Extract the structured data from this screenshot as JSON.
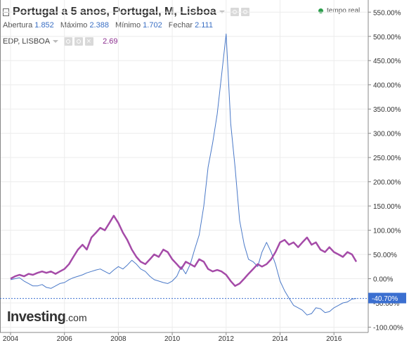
{
  "header": {
    "title": "Portugal a 5 anos, Portugal, M, Lisboa",
    "realtime": "tempo real",
    "ohlc": [
      {
        "label": "Abertura",
        "value": "1.852"
      },
      {
        "label": "Máximo",
        "value": "2.388"
      },
      {
        "label": "Mínimo",
        "value": "1.702"
      },
      {
        "label": "Fechar",
        "value": "2.111"
      }
    ],
    "comparison": {
      "name": "EDP, LISBOA",
      "value": "2.69"
    }
  },
  "logo": {
    "main": "Investing",
    "domain": ".com"
  },
  "colors": {
    "primary": "#4a79c8",
    "comparison": "#a54ba8",
    "current_tag": "#3b6fd0",
    "realtime_dot": "#2a9d4a"
  },
  "chart_data": {
    "type": "line",
    "x_ticks": [
      "2004",
      "2006",
      "2008",
      "2010",
      "2012",
      "2014",
      "2016"
    ],
    "y_ticks": [
      "550.00%",
      "500.00%",
      "450.00%",
      "400.00%",
      "350.00%",
      "300.00%",
      "250.00%",
      "200.00%",
      "150.00%",
      "100.00%",
      "50.00%",
      "0.00%",
      "-50.00%",
      "-100.00%"
    ],
    "y_tick_values": [
      550,
      500,
      450,
      400,
      350,
      300,
      250,
      200,
      150,
      100,
      50,
      0,
      -50,
      -100
    ],
    "xlim": [
      2003.8,
      2017.2
    ],
    "ylim": [
      -105,
      570
    ],
    "current_value_label": "-40.70%",
    "current_value": -40.7,
    "grid": true,
    "series": [
      {
        "name": "Portugal a 5 anos",
        "points": [
          [
            2004.0,
            -2
          ],
          [
            2004.17,
            0
          ],
          [
            2004.33,
            2
          ],
          [
            2004.5,
            -5
          ],
          [
            2004.67,
            -10
          ],
          [
            2004.83,
            -15
          ],
          [
            2005.0,
            -15
          ],
          [
            2005.17,
            -12
          ],
          [
            2005.33,
            -18
          ],
          [
            2005.5,
            -20
          ],
          [
            2005.67,
            -15
          ],
          [
            2005.83,
            -10
          ],
          [
            2006.0,
            -8
          ],
          [
            2006.17,
            -2
          ],
          [
            2006.33,
            2
          ],
          [
            2006.5,
            5
          ],
          [
            2006.67,
            8
          ],
          [
            2006.83,
            12
          ],
          [
            2007.0,
            15
          ],
          [
            2007.17,
            18
          ],
          [
            2007.33,
            20
          ],
          [
            2007.5,
            15
          ],
          [
            2007.67,
            10
          ],
          [
            2007.83,
            18
          ],
          [
            2008.0,
            25
          ],
          [
            2008.17,
            20
          ],
          [
            2008.33,
            28
          ],
          [
            2008.5,
            38
          ],
          [
            2008.67,
            30
          ],
          [
            2008.83,
            20
          ],
          [
            2009.0,
            15
          ],
          [
            2009.17,
            5
          ],
          [
            2009.33,
            -2
          ],
          [
            2009.5,
            -5
          ],
          [
            2009.67,
            -8
          ],
          [
            2009.83,
            -10
          ],
          [
            2010.0,
            -5
          ],
          [
            2010.17,
            5
          ],
          [
            2010.33,
            25
          ],
          [
            2010.5,
            10
          ],
          [
            2010.67,
            30
          ],
          [
            2010.83,
            60
          ],
          [
            2011.0,
            90
          ],
          [
            2011.17,
            150
          ],
          [
            2011.33,
            230
          ],
          [
            2011.5,
            280
          ],
          [
            2011.67,
            340
          ],
          [
            2011.83,
            420
          ],
          [
            2012.0,
            505
          ],
          [
            2012.17,
            320
          ],
          [
            2012.33,
            230
          ],
          [
            2012.5,
            120
          ],
          [
            2012.67,
            70
          ],
          [
            2012.83,
            40
          ],
          [
            2013.0,
            35
          ],
          [
            2013.17,
            25
          ],
          [
            2013.33,
            55
          ],
          [
            2013.5,
            75
          ],
          [
            2013.67,
            55
          ],
          [
            2013.83,
            30
          ],
          [
            2014.0,
            -5
          ],
          [
            2014.17,
            -25
          ],
          [
            2014.33,
            -40
          ],
          [
            2014.5,
            -55
          ],
          [
            2014.67,
            -60
          ],
          [
            2014.83,
            -65
          ],
          [
            2015.0,
            -75
          ],
          [
            2015.17,
            -72
          ],
          [
            2015.33,
            -60
          ],
          [
            2015.5,
            -62
          ],
          [
            2015.67,
            -70
          ],
          [
            2015.83,
            -68
          ],
          [
            2016.0,
            -60
          ],
          [
            2016.17,
            -55
          ],
          [
            2016.33,
            -50
          ],
          [
            2016.5,
            -48
          ],
          [
            2016.67,
            -42
          ],
          [
            2016.83,
            -40.7
          ]
        ]
      },
      {
        "name": "EDP, LISBOA",
        "points": [
          [
            2004.0,
            0
          ],
          [
            2004.17,
            5
          ],
          [
            2004.33,
            8
          ],
          [
            2004.5,
            5
          ],
          [
            2004.67,
            10
          ],
          [
            2004.83,
            8
          ],
          [
            2005.0,
            12
          ],
          [
            2005.17,
            15
          ],
          [
            2005.33,
            12
          ],
          [
            2005.5,
            15
          ],
          [
            2005.67,
            10
          ],
          [
            2005.83,
            15
          ],
          [
            2006.0,
            20
          ],
          [
            2006.17,
            30
          ],
          [
            2006.33,
            45
          ],
          [
            2006.5,
            60
          ],
          [
            2006.67,
            70
          ],
          [
            2006.83,
            60
          ],
          [
            2007.0,
            85
          ],
          [
            2007.17,
            95
          ],
          [
            2007.33,
            105
          ],
          [
            2007.5,
            100
          ],
          [
            2007.67,
            115
          ],
          [
            2007.83,
            130
          ],
          [
            2008.0,
            115
          ],
          [
            2008.17,
            95
          ],
          [
            2008.33,
            80
          ],
          [
            2008.5,
            60
          ],
          [
            2008.67,
            45
          ],
          [
            2008.83,
            35
          ],
          [
            2009.0,
            30
          ],
          [
            2009.17,
            40
          ],
          [
            2009.33,
            50
          ],
          [
            2009.5,
            45
          ],
          [
            2009.67,
            60
          ],
          [
            2009.83,
            55
          ],
          [
            2010.0,
            40
          ],
          [
            2010.17,
            30
          ],
          [
            2010.33,
            20
          ],
          [
            2010.5,
            35
          ],
          [
            2010.67,
            30
          ],
          [
            2010.83,
            25
          ],
          [
            2011.0,
            40
          ],
          [
            2011.17,
            35
          ],
          [
            2011.33,
            20
          ],
          [
            2011.5,
            15
          ],
          [
            2011.67,
            18
          ],
          [
            2011.83,
            15
          ],
          [
            2012.0,
            8
          ],
          [
            2012.17,
            -5
          ],
          [
            2012.33,
            -15
          ],
          [
            2012.5,
            -10
          ],
          [
            2012.67,
            0
          ],
          [
            2012.83,
            10
          ],
          [
            2013.0,
            20
          ],
          [
            2013.17,
            30
          ],
          [
            2013.33,
            25
          ],
          [
            2013.5,
            30
          ],
          [
            2013.67,
            40
          ],
          [
            2013.83,
            55
          ],
          [
            2014.0,
            75
          ],
          [
            2014.17,
            80
          ],
          [
            2014.33,
            70
          ],
          [
            2014.5,
            75
          ],
          [
            2014.67,
            65
          ],
          [
            2014.83,
            75
          ],
          [
            2015.0,
            85
          ],
          [
            2015.17,
            70
          ],
          [
            2015.33,
            75
          ],
          [
            2015.5,
            60
          ],
          [
            2015.67,
            55
          ],
          [
            2015.83,
            65
          ],
          [
            2016.0,
            55
          ],
          [
            2016.17,
            50
          ],
          [
            2016.33,
            45
          ],
          [
            2016.5,
            55
          ],
          [
            2016.67,
            50
          ],
          [
            2016.83,
            35
          ]
        ]
      }
    ]
  }
}
